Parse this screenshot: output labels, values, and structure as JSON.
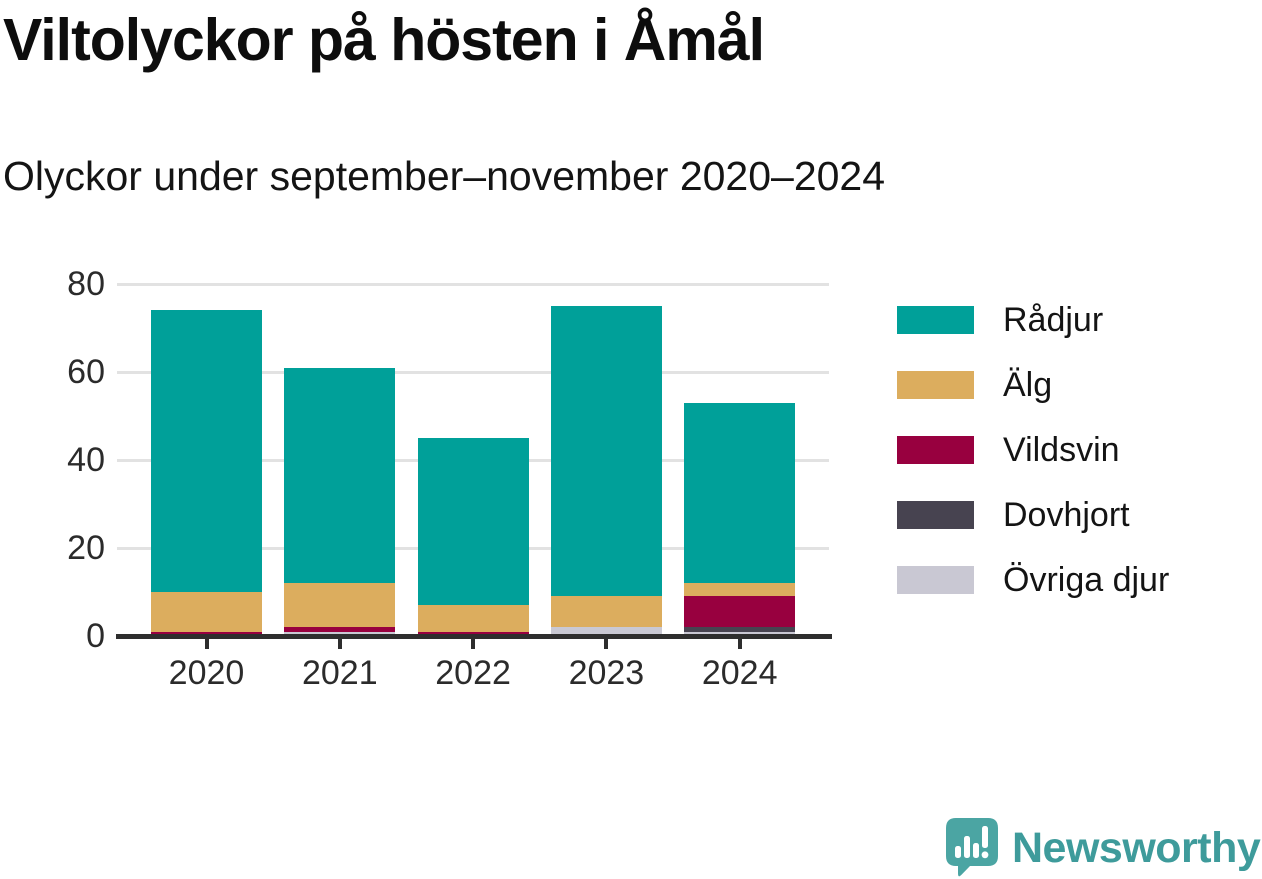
{
  "header": {
    "title": "Viltolyckor på hösten i Åmål",
    "subtitle": "Olyckor under september–november 2020–2024"
  },
  "branding": {
    "wordmark": "Newsworthy",
    "logo_icon": "speech-bubble-bar-chart-exclamation-icon",
    "brand_color": "#3E9B9B"
  },
  "chart_data": {
    "type": "bar",
    "stacked": true,
    "title": "Viltolyckor på hösten i Åmål",
    "subtitle": "Olyckor under september–november 2020–2024",
    "categories": [
      "2020",
      "2021",
      "2022",
      "2023",
      "2024"
    ],
    "series": [
      {
        "name": "Rådjur",
        "color": "#00A099",
        "values": [
          64,
          49,
          38,
          66,
          41
        ]
      },
      {
        "name": "Älg",
        "color": "#DCAD5E",
        "values": [
          9,
          10,
          6,
          7,
          3
        ]
      },
      {
        "name": "Vildsvin",
        "color": "#98003F",
        "values": [
          1,
          1,
          1,
          0,
          7
        ]
      },
      {
        "name": "Dovhjort",
        "color": "#474350",
        "values": [
          0,
          0,
          0,
          0,
          1
        ]
      },
      {
        "name": "Övriga djur",
        "color": "#C9C8D3",
        "values": [
          0,
          1,
          0,
          2,
          1
        ]
      }
    ],
    "stack_order": "bottom-to-top is reverse of series list (Övriga djur at bottom, Rådjur on top)",
    "totals": [
      74,
      61,
      45,
      75,
      53
    ],
    "xlabel": "",
    "ylabel": "",
    "ylim": [
      0,
      80
    ],
    "yticks": [
      0,
      20,
      40,
      60,
      80
    ],
    "grid": "horizontal",
    "legend_position": "right",
    "axis_color": "#2E2E2E",
    "gridline_color": "#E2E2E2",
    "background_color": "#FFFFFF"
  }
}
